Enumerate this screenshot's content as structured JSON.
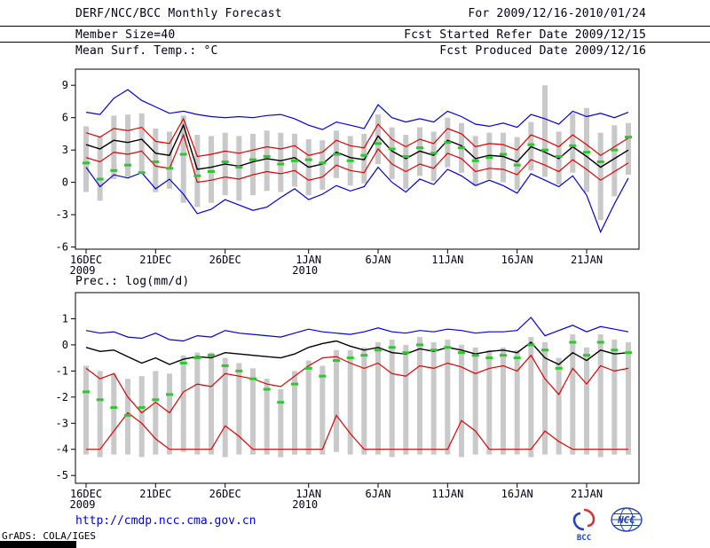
{
  "header": {
    "title": "DERF/NCC/BCC Monthly Forecast",
    "period": "For 2009/12/16-2010/01/24",
    "member_size": "Member Size=40",
    "refer_date": "Fcst Started Refer Date 2009/12/15",
    "variable": "Mean Surf. Temp.: °C",
    "produced_date": "Fcst Produced Date 2009/12/16"
  },
  "footer": {
    "url": "http://cmdp.ncc.cma.gov.cn",
    "credit": "GrADS: COLA/IGES",
    "logos": [
      {
        "label": "BCC"
      },
      {
        "label": "NCC"
      }
    ]
  },
  "colors": {
    "line_blue": "#0000dc",
    "line_red": "#dc0000",
    "line_black": "#000000",
    "marker_green": "#2ec82e",
    "bar_gray": "#c9c9c9",
    "url_blue": "#0000dd",
    "logo_blue": "#2244bb",
    "logo_red": "#d43333"
  },
  "chart_data": [
    {
      "type": "line",
      "title": "Mean Surf. Temp.: °C",
      "xlabel": "",
      "ylabel": "°C",
      "n": 40,
      "ylim": [
        -6.2,
        10.5
      ],
      "yticks": [
        -6,
        -3,
        0,
        3,
        6,
        9
      ],
      "grid": false,
      "legend": "none",
      "xticks": [
        {
          "day": 0,
          "label": "16DEC",
          "sublabel": "2009"
        },
        {
          "day": 5,
          "label": "21DEC"
        },
        {
          "day": 10,
          "label": "26DEC"
        },
        {
          "day": 16,
          "label": "1JAN",
          "sublabel": "2010"
        },
        {
          "day": 21,
          "label": "6JAN"
        },
        {
          "day": 26,
          "label": "11JAN"
        },
        {
          "day": 31,
          "label": "16JAN"
        },
        {
          "day": 36,
          "label": "21JAN"
        }
      ],
      "series": [
        {
          "name": "max",
          "color": "#0000dc",
          "values": [
            6.5,
            6.3,
            7.8,
            8.6,
            7.6,
            7.0,
            6.4,
            6.6,
            6.3,
            6.1,
            6.0,
            6.1,
            6.0,
            6.2,
            6.3,
            5.9,
            5.3,
            4.9,
            5.6,
            5.3,
            5.0,
            7.2,
            6.0,
            5.6,
            5.9,
            5.6,
            6.6,
            6.1,
            5.4,
            5.2,
            5.5,
            5.1,
            6.3,
            5.9,
            5.4,
            6.6,
            6.1,
            6.4,
            6.0,
            6.5
          ]
        },
        {
          "name": "min",
          "color": "#0000dc",
          "values": [
            1.4,
            -0.4,
            0.7,
            0.4,
            0.9,
            -0.6,
            0.3,
            -1.1,
            -2.9,
            -2.5,
            -1.6,
            -2.1,
            -2.6,
            -2.3,
            -1.4,
            -0.6,
            -1.6,
            -1.1,
            -0.3,
            -0.8,
            -0.4,
            1.4,
            0.0,
            -0.9,
            0.3,
            -0.2,
            1.2,
            0.6,
            -0.3,
            0.2,
            -0.3,
            -1.0,
            0.8,
            0.2,
            -0.4,
            0.6,
            -1.2,
            -4.6,
            -2.0,
            0.4
          ]
        },
        {
          "name": "upper",
          "color": "#dc0000",
          "values": [
            4.6,
            4.2,
            5.0,
            4.8,
            5.1,
            3.8,
            3.6,
            5.9,
            2.4,
            2.6,
            2.9,
            2.7,
            3.0,
            3.3,
            3.1,
            3.4,
            2.5,
            2.8,
            3.9,
            3.4,
            3.2,
            5.4,
            4.0,
            3.3,
            4.0,
            3.6,
            5.0,
            4.5,
            3.3,
            3.6,
            3.5,
            3.0,
            4.4,
            3.9,
            3.3,
            4.4,
            3.5,
            2.5,
            3.3,
            4.1
          ]
        },
        {
          "name": "lower",
          "color": "#dc0000",
          "values": [
            2.3,
            1.9,
            2.8,
            2.6,
            2.9,
            1.5,
            1.3,
            4.4,
            0.0,
            0.2,
            0.5,
            0.3,
            0.7,
            1.0,
            0.8,
            1.1,
            0.2,
            0.5,
            1.6,
            1.1,
            0.9,
            3.1,
            1.7,
            1.0,
            1.7,
            1.3,
            2.7,
            2.2,
            1.0,
            1.3,
            1.2,
            0.7,
            2.1,
            1.6,
            1.0,
            2.1,
            1.2,
            0.2,
            1.0,
            1.8
          ]
        },
        {
          "name": "mean",
          "color": "#000000",
          "values": [
            3.5,
            3.1,
            3.9,
            3.7,
            4.0,
            2.7,
            2.5,
            5.3,
            1.2,
            1.4,
            1.7,
            1.5,
            1.9,
            2.2,
            2.0,
            2.3,
            1.4,
            1.7,
            2.8,
            2.3,
            2.1,
            4.3,
            2.9,
            2.2,
            2.9,
            2.5,
            3.9,
            3.4,
            2.2,
            2.5,
            2.4,
            1.9,
            3.3,
            2.8,
            2.2,
            3.3,
            2.4,
            1.4,
            2.2,
            3.0
          ]
        }
      ],
      "bars": {
        "name": "ensemble-spread",
        "color": "#c9c9c9",
        "high": [
          5.2,
          4.3,
          6.2,
          6.3,
          6.4,
          5.0,
          4.7,
          6.2,
          4.4,
          4.3,
          4.6,
          4.3,
          4.5,
          4.8,
          4.6,
          4.5,
          4.0,
          3.9,
          4.8,
          4.3,
          4.5,
          6.3,
          5.1,
          4.4,
          5.1,
          4.7,
          6.0,
          5.5,
          4.3,
          4.6,
          4.6,
          4.2,
          5.6,
          9.0,
          4.7,
          6.4,
          6.9,
          4.6,
          5.3,
          5.5
        ],
        "low": [
          -0.9,
          -1.7,
          0.3,
          0.5,
          0.9,
          -0.9,
          -0.6,
          -1.9,
          -2.3,
          -1.9,
          -1.2,
          -1.7,
          -1.2,
          -0.8,
          -0.9,
          -0.4,
          -1.2,
          -0.7,
          0.4,
          -0.3,
          -0.1,
          1.7,
          0.3,
          -0.6,
          0.6,
          0.1,
          1.4,
          0.9,
          -0.3,
          0.3,
          0.0,
          -0.7,
          1.1,
          0.5,
          -0.2,
          0.9,
          -0.9,
          -3.5,
          -1.3,
          0.7
        ]
      },
      "markers": {
        "name": "median",
        "color": "#2ec82e",
        "values": [
          1.8,
          0.3,
          1.1,
          1.6,
          0.9,
          1.9,
          1.3,
          2.6,
          0.6,
          1.0,
          1.9,
          1.4,
          2.1,
          2.4,
          1.7,
          2.0,
          2.1,
          1.8,
          2.6,
          2.0,
          2.5,
          3.6,
          3.1,
          2.4,
          3.2,
          2.7,
          3.7,
          3.2,
          2.0,
          2.3,
          2.6,
          1.6,
          3.5,
          3.0,
          2.4,
          3.4,
          2.8,
          1.9,
          3.0,
          4.2
        ]
      }
    },
    {
      "type": "line",
      "title": "Prec.: log(mm/d)",
      "xlabel": "",
      "ylabel": "log(mm/d)",
      "n": 40,
      "ylim": [
        -5.3,
        2.0
      ],
      "yticks": [
        -5,
        -4,
        -3,
        -2,
        -1,
        0,
        1
      ],
      "grid": false,
      "legend": "none",
      "xticks": [
        {
          "day": 0,
          "label": "16DEC",
          "sublabel": "2009"
        },
        {
          "day": 5,
          "label": "21DEC"
        },
        {
          "day": 10,
          "label": "26DEC"
        },
        {
          "day": 16,
          "label": "1JAN",
          "sublabel": "2010"
        },
        {
          "day": 21,
          "label": "6JAN"
        },
        {
          "day": 26,
          "label": "11JAN"
        },
        {
          "day": 31,
          "label": "16JAN"
        },
        {
          "day": 36,
          "label": "21JAN"
        }
      ],
      "series": [
        {
          "name": "max",
          "color": "#0000dc",
          "values": [
            0.55,
            0.45,
            0.5,
            0.3,
            0.25,
            0.45,
            0.2,
            0.15,
            0.35,
            0.3,
            0.55,
            0.45,
            0.4,
            0.35,
            0.3,
            0.45,
            0.6,
            0.5,
            0.45,
            0.4,
            0.5,
            0.65,
            0.5,
            0.45,
            0.55,
            0.5,
            0.6,
            0.55,
            0.45,
            0.5,
            0.5,
            0.55,
            1.05,
            0.35,
            0.55,
            0.75,
            0.5,
            0.7,
            0.6,
            0.5
          ]
        },
        {
          "name": "lower",
          "color": "#dc0000",
          "values": [
            -0.9,
            -1.3,
            -1.1,
            -2.0,
            -2.6,
            -2.2,
            -2.6,
            -1.8,
            -1.5,
            -1.6,
            -1.1,
            -1.2,
            -1.3,
            -1.5,
            -1.6,
            -1.2,
            -0.8,
            -0.5,
            -0.45,
            -0.7,
            -0.9,
            -0.7,
            -1.1,
            -1.2,
            -0.8,
            -0.9,
            -0.7,
            -0.85,
            -1.1,
            -0.9,
            -0.8,
            -1.0,
            -0.4,
            -1.3,
            -1.9,
            -0.9,
            -1.5,
            -0.8,
            -1.0,
            -0.9
          ]
        },
        {
          "name": "min",
          "color": "#dc0000",
          "values": [
            -4,
            -4,
            -3.3,
            -2.6,
            -3.0,
            -3.6,
            -4,
            -4,
            -4,
            -4,
            -3.1,
            -3.5,
            -4,
            -4,
            -4,
            -4,
            -4,
            -4,
            -2.7,
            -3.4,
            -4,
            -4,
            -4,
            -4,
            -4,
            -4,
            -4,
            -2.9,
            -3.3,
            -4,
            -4,
            -4,
            -4,
            -3.3,
            -3.7,
            -4,
            -4,
            -4,
            -4,
            -4
          ]
        },
        {
          "name": "mean",
          "color": "#000000",
          "values": [
            -0.1,
            -0.25,
            -0.2,
            -0.45,
            -0.7,
            -0.5,
            -0.75,
            -0.55,
            -0.45,
            -0.5,
            -0.3,
            -0.35,
            -0.4,
            -0.45,
            -0.5,
            -0.35,
            -0.1,
            0.05,
            0.15,
            -0.05,
            -0.2,
            -0.1,
            -0.3,
            -0.35,
            -0.15,
            -0.25,
            -0.1,
            -0.2,
            -0.35,
            -0.25,
            -0.2,
            -0.3,
            0.1,
            -0.5,
            -0.75,
            -0.3,
            -0.6,
            -0.2,
            -0.35,
            -0.3
          ]
        }
      ],
      "bars": {
        "name": "ensemble-spread",
        "color": "#c9c9c9",
        "high": [
          -0.8,
          -1.0,
          -1.1,
          -1.3,
          -1.2,
          -1.0,
          -1.1,
          -0.4,
          -0.3,
          -0.3,
          -0.5,
          -0.7,
          -0.9,
          -1.3,
          -1.7,
          -1.0,
          -0.6,
          -0.8,
          -0.2,
          -0.2,
          -0.1,
          0.1,
          0.2,
          0.0,
          0.3,
          0.1,
          0.2,
          0.0,
          -0.1,
          -0.2,
          -0.1,
          -0.2,
          0.3,
          0.1,
          -0.5,
          0.4,
          -0.1,
          0.4,
          0.2,
          0.1
        ],
        "low": [
          -4.2,
          -4.3,
          -4.2,
          -4.2,
          -4.3,
          -4.2,
          -4.2,
          -4.1,
          -4.2,
          -4.2,
          -4.3,
          -4.2,
          -4.2,
          -4.2,
          -4.3,
          -4.2,
          -4.2,
          -4.2,
          -4.1,
          -4.2,
          -4.2,
          -4.2,
          -4.3,
          -4.2,
          -4.2,
          -4.2,
          -4.2,
          -4.3,
          -4.2,
          -4.2,
          -4.2,
          -4.2,
          -4.3,
          -4.2,
          -4.2,
          -4.2,
          -4.2,
          -4.3,
          -4.2,
          -4.2
        ]
      },
      "markers": {
        "name": "median",
        "color": "#2ec82e",
        "values": [
          -1.8,
          -2.1,
          -2.4,
          -2.7,
          -2.4,
          -2.1,
          -1.9,
          -0.7,
          -0.5,
          -0.4,
          -0.8,
          -1.0,
          -1.3,
          -1.7,
          -2.2,
          -1.5,
          -0.9,
          -1.2,
          -0.6,
          -0.5,
          -0.4,
          -0.2,
          -0.1,
          -0.3,
          0.0,
          -0.2,
          -0.1,
          -0.3,
          -0.4,
          -0.5,
          -0.4,
          -0.5,
          0.0,
          -0.2,
          -0.9,
          0.1,
          -0.4,
          0.1,
          -0.2,
          -0.3
        ]
      }
    }
  ]
}
